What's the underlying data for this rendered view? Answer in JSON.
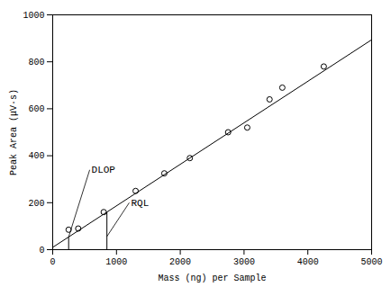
{
  "chart_data": {
    "type": "scatter",
    "xlabel": "Mass (ng) per Sample",
    "ylabel": "Peak Area (μV·s)",
    "xlim": [
      0,
      5000
    ],
    "ylim": [
      0,
      1000
    ],
    "xticks": [
      0,
      1000,
      2000,
      3000,
      4000,
      5000
    ],
    "yticks": [
      0,
      200,
      400,
      600,
      800,
      1000
    ],
    "x": [
      250,
      400,
      800,
      1300,
      1750,
      2150,
      2750,
      3050,
      3400,
      3600,
      4250
    ],
    "values": [
      85,
      90,
      160,
      250,
      325,
      390,
      500,
      520,
      640,
      690,
      780
    ],
    "color": "#000000",
    "marker": "open_circle",
    "fit_line": {
      "x": [
        0,
        5000
      ],
      "values": [
        9.83,
        893.83
      ],
      "color": "#000000"
    },
    "vlines": [
      {
        "x": 250,
        "y": [
          0,
          54.03
        ],
        "color": "#000000"
      },
      {
        "x": 850,
        "y": [
          0,
          160.11
        ],
        "color": "#000000"
      }
    ],
    "annotations": [
      {
        "text": "DLOP",
        "x": 580,
        "y": 340,
        "arrow_x": 250,
        "arrow_y": 54.03
      },
      {
        "text": "RQL",
        "x": 1200,
        "y": 200,
        "arrow_x": 850,
        "arrow_y": 56.0385
      }
    ]
  }
}
